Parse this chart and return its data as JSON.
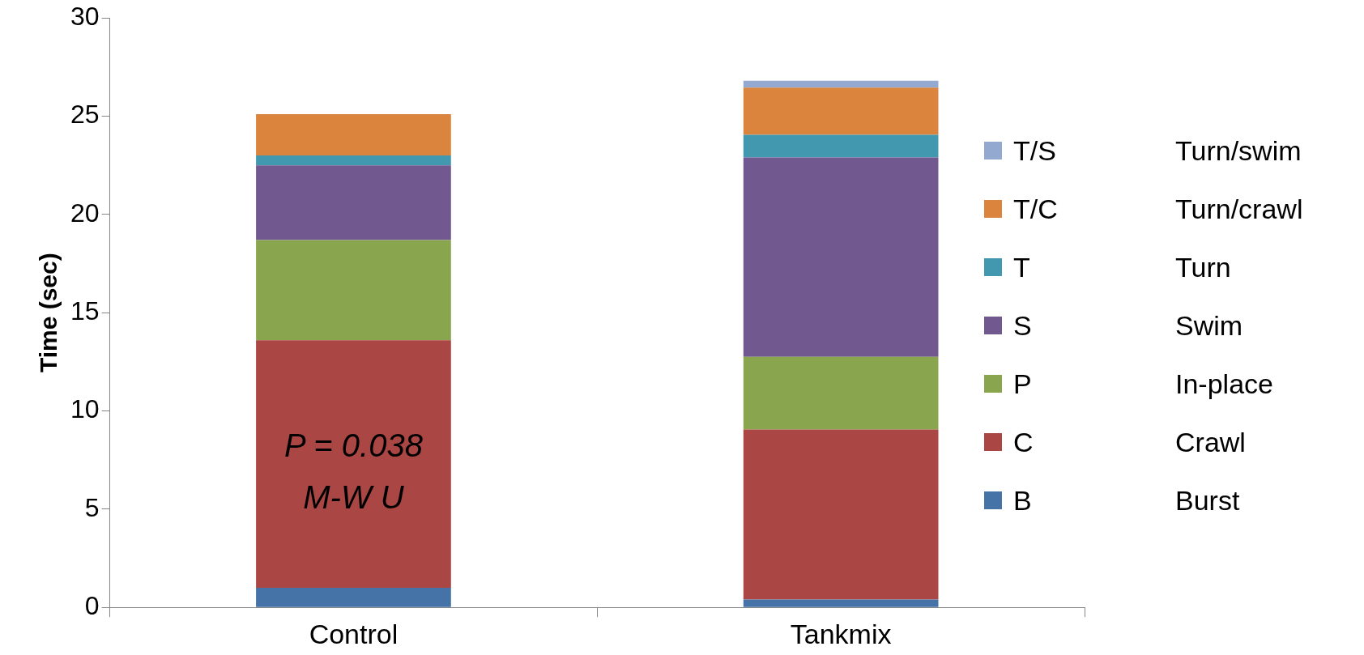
{
  "chart_data": {
    "type": "bar",
    "stacked": true,
    "ylabel": "Time (sec)",
    "categories": [
      "Control",
      "Tankmix"
    ],
    "ylim": [
      0,
      30
    ],
    "yticks": [
      0,
      5,
      10,
      15,
      20,
      25,
      30
    ],
    "grid": false,
    "legend": "right",
    "series": [
      {
        "name": "B",
        "color": "#4572a7",
        "values": [
          1.0,
          0.4
        ]
      },
      {
        "name": "C",
        "color": "#aa4643",
        "values": [
          12.6,
          8.65
        ]
      },
      {
        "name": "P",
        "color": "#89a54e",
        "values": [
          5.1,
          3.7
        ]
      },
      {
        "name": "S",
        "color": "#71588f",
        "values": [
          3.8,
          10.15
        ]
      },
      {
        "name": "T",
        "color": "#4198af",
        "values": [
          0.5,
          1.15
        ]
      },
      {
        "name": "T/C",
        "color": "#db843d",
        "values": [
          2.1,
          2.4
        ]
      },
      {
        "name": "T/S",
        "color": "#93a9cf",
        "values": [
          0,
          0.35
        ]
      }
    ],
    "annotations": [
      "P = 0.038",
      "M-W U",
      "Burst",
      "Crawl",
      "In-place",
      "Swim",
      "Turn",
      "Turn/crawl",
      "Turn/swim"
    ]
  }
}
